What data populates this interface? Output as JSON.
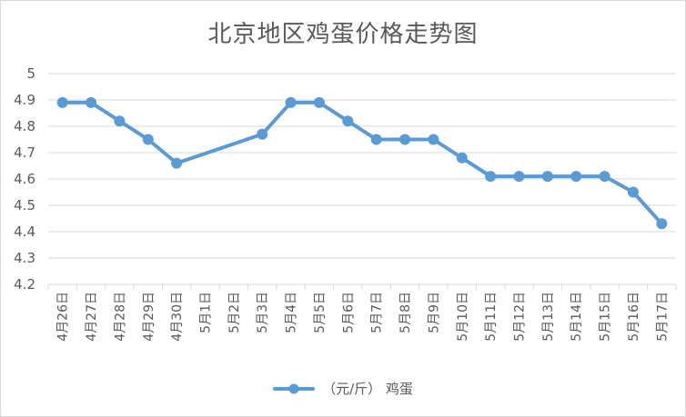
{
  "chart_data": {
    "type": "line",
    "title": "北京地区鸡蛋价格走势图",
    "categories": [
      "4月26日",
      "4月27日",
      "4月28日",
      "4月29日",
      "4月30日",
      "5月1日",
      "5月2日",
      "5月3日",
      "5月4日",
      "5月5日",
      "5月6日",
      "5月7日",
      "5月8日",
      "5月9日",
      "5月10日",
      "5月11日",
      "5月12日",
      "5月13日",
      "5月14日",
      "5月15日",
      "5月16日",
      "5月17日"
    ],
    "series": [
      {
        "name": "（元/斤） 鸡蛋",
        "values": [
          4.89,
          4.89,
          4.82,
          4.75,
          4.66,
          null,
          null,
          4.77,
          4.89,
          4.89,
          4.82,
          4.75,
          4.75,
          4.75,
          4.68,
          4.61,
          4.61,
          4.61,
          4.61,
          4.61,
          4.55,
          4.43
        ]
      }
    ],
    "ylim": [
      4.2,
      5
    ],
    "yticks": [
      "4.2",
      "4.3",
      "4.4",
      "4.5",
      "4.6",
      "4.7",
      "4.8",
      "4.9",
      "5"
    ],
    "grid": true,
    "legend_position": "bottom",
    "line_color": "#5b9bd5",
    "grid_color": "#d9d9d9",
    "text_color": "#595959"
  }
}
